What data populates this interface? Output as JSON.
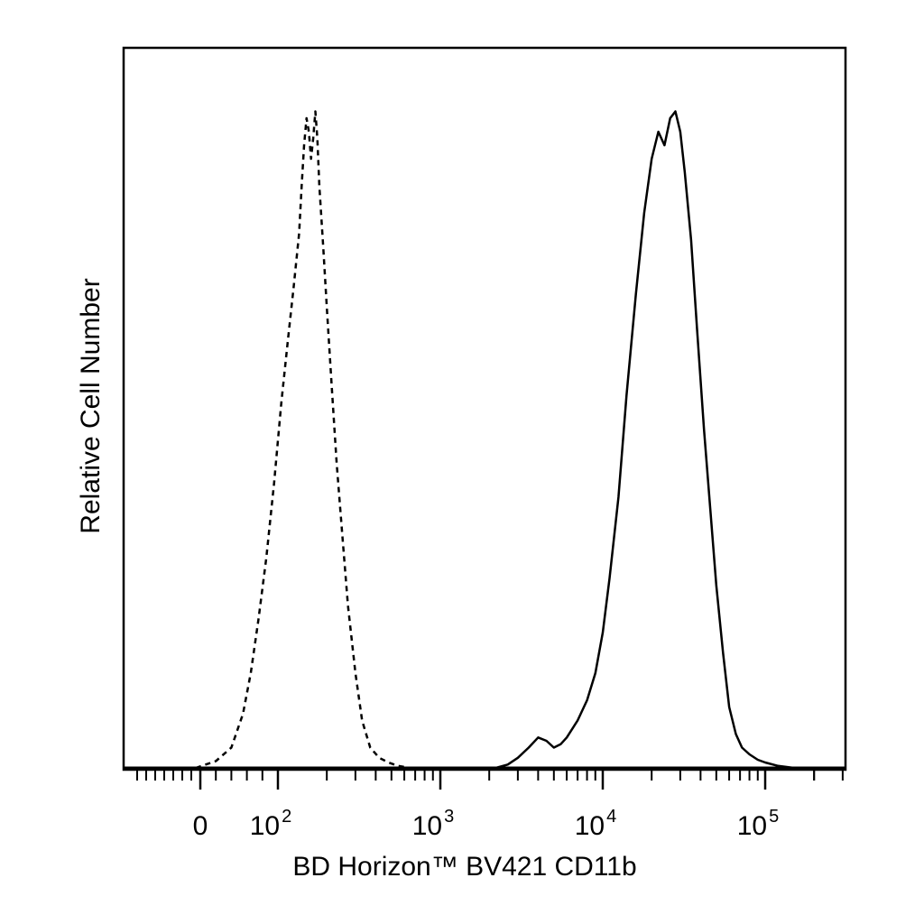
{
  "chart_data": {
    "type": "line",
    "title": "",
    "xlabel": "BD Horizon™ BV421 CD11b",
    "ylabel": "Relative Cell Number",
    "x_scale": "biexponential",
    "xlim": [
      -150,
      250000
    ],
    "ylim": [
      0,
      100
    ],
    "grid": false,
    "legend": "none",
    "x_ticks": [
      {
        "value": 0,
        "base": "0",
        "exp": ""
      },
      {
        "value": 100,
        "base": "10",
        "exp": "2"
      },
      {
        "value": 1000,
        "base": "10",
        "exp": "3"
      },
      {
        "value": 10000,
        "base": "10",
        "exp": "4"
      },
      {
        "value": 100000,
        "base": "10",
        "exp": "5"
      }
    ],
    "series": [
      {
        "style": "dashed",
        "x": [
          -10,
          20,
          40,
          55,
          65,
          75,
          85,
          95,
          105,
          115,
          125,
          135,
          140,
          145,
          150,
          155,
          160,
          165,
          170,
          175,
          180,
          190,
          200,
          215,
          230,
          250,
          270,
          300,
          330,
          370,
          420,
          480,
          550,
          650
        ],
        "y": [
          0,
          1,
          3,
          8,
          14,
          22,
          31,
          42,
          54,
          63,
          71,
          79,
          86,
          92,
          96,
          94,
          90,
          93,
          97,
          93,
          86,
          77,
          68,
          56,
          45,
          34,
          24,
          14,
          7,
          3,
          1.5,
          0.8,
          0.3,
          0
        ]
      },
      {
        "style": "solid",
        "x": [
          2200,
          2600,
          3000,
          3500,
          4000,
          4500,
          5000,
          5500,
          6000,
          7000,
          8000,
          9000,
          10000,
          11000,
          12500,
          14000,
          16000,
          18000,
          20000,
          22000,
          24000,
          26000,
          28000,
          30000,
          32000,
          35000,
          38000,
          42000,
          46000,
          50000,
          55000,
          60000,
          66000,
          72000,
          80000,
          90000,
          100000,
          120000,
          150000
        ],
        "y": [
          0,
          0.5,
          1.5,
          3,
          4.5,
          4,
          3,
          3.5,
          4.5,
          7,
          10,
          14,
          20,
          28,
          40,
          55,
          70,
          82,
          90,
          94,
          92,
          96,
          97,
          94,
          88,
          78,
          65,
          50,
          38,
          27,
          17,
          9,
          5,
          3,
          2,
          1.2,
          0.8,
          0.3,
          0
        ]
      }
    ]
  }
}
